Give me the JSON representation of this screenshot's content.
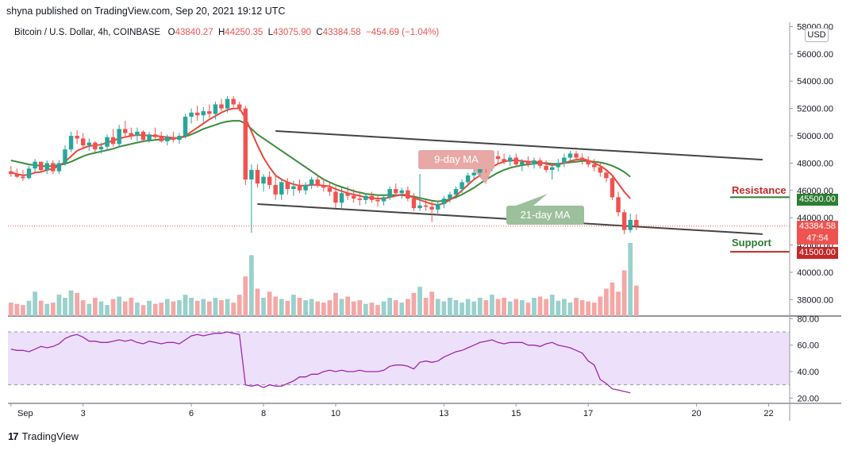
{
  "header": {
    "published": "shyna published on TradingView.com, Sep 20, 2021 19:12 UTC",
    "symbol": "Bitcoin / U.S. Dollar, 4h, COINBASE",
    "o_key": "O",
    "o_val": "43840.27",
    "h_key": "H",
    "h_val": "44250.35",
    "l_key": "L",
    "l_val": "43075.90",
    "c_key": "C",
    "c_val": "43384.58",
    "change": "−454.69 (−1.04%)"
  },
  "currency": "USD",
  "brand": "TradingView",
  "labels": {
    "ma9": "9-day MA",
    "ma21": "21-day MA",
    "resistance": "Resistance",
    "support": "Support",
    "resistance_price": "45500.00",
    "support_price": "41500.00",
    "last_price": "43384.58",
    "countdown": "47:54"
  },
  "colors": {
    "up": "#26a69a",
    "down": "#ef5350",
    "ma9": "#f0453a",
    "ma21": "#3c8c3c",
    "rsi": "#9c27b0",
    "rsi_band": "#ede0fb",
    "channel": "#444444",
    "resistance": "#c62828",
    "support": "#c62828"
  },
  "chart_data": {
    "type": "candlestick",
    "yaxis_ticks": [
      58000,
      56000,
      54000,
      52000,
      50000,
      48000,
      46000,
      44000,
      42000,
      40000,
      38000
    ],
    "ylim": [
      36800,
      58200
    ],
    "xaxis_ticks": [
      {
        "label": "Sep",
        "x": 0.5
      },
      {
        "label": "3",
        "x": 12.5
      },
      {
        "label": "6",
        "x": 30.5
      },
      {
        "label": "8",
        "x": 42.5
      },
      {
        "label": "10",
        "x": 54.5
      },
      {
        "label": "13",
        "x": 72.5
      },
      {
        "label": "15",
        "x": 84.5
      },
      {
        "label": "17",
        "x": 96.5
      },
      {
        "label": "20",
        "x": 114.5
      },
      {
        "label": "22",
        "x": 126.5
      }
    ],
    "candles": [
      [
        47400,
        47800,
        47000,
        47200
      ],
      [
        47200,
        47600,
        46900,
        47000
      ],
      [
        47000,
        47500,
        46700,
        46900
      ],
      [
        46900,
        47800,
        46800,
        47600
      ],
      [
        47600,
        48300,
        47300,
        48100
      ],
      [
        48100,
        48000,
        47300,
        47500
      ],
      [
        47500,
        48200,
        47200,
        48000
      ],
      [
        48000,
        48200,
        47200,
        47400
      ],
      [
        47400,
        48200,
        47200,
        48000
      ],
      [
        48000,
        49300,
        47800,
        49000
      ],
      [
        49000,
        50300,
        48800,
        50000
      ],
      [
        50000,
        50400,
        49400,
        49800
      ],
      [
        49800,
        50200,
        49000,
        49300
      ],
      [
        49300,
        49800,
        48900,
        49500
      ],
      [
        49500,
        49600,
        48800,
        49000
      ],
      [
        49000,
        49500,
        48700,
        49200
      ],
      [
        49200,
        50100,
        48900,
        49900
      ],
      [
        49900,
        50500,
        49200,
        49400
      ],
      [
        49400,
        50800,
        49200,
        50500
      ],
      [
        50500,
        51100,
        49900,
        50200
      ],
      [
        50200,
        50600,
        49700,
        50000
      ],
      [
        50000,
        50600,
        49600,
        50300
      ],
      [
        50300,
        50400,
        49500,
        49700
      ],
      [
        49700,
        50300,
        49500,
        50100
      ],
      [
        50100,
        50600,
        49700,
        49900
      ],
      [
        49900,
        50300,
        49500,
        49600
      ],
      [
        49600,
        50100,
        49300,
        49900
      ],
      [
        49900,
        50300,
        49500,
        49700
      ],
      [
        49700,
        50200,
        49400,
        50000
      ],
      [
        50000,
        51600,
        49800,
        51400
      ],
      [
        51400,
        52000,
        50900,
        51700
      ],
      [
        51700,
        52200,
        51100,
        51500
      ],
      [
        51500,
        52100,
        51000,
        51800
      ],
      [
        51800,
        52300,
        51300,
        51600
      ],
      [
        51600,
        52500,
        51200,
        52300
      ],
      [
        52300,
        52700,
        51800,
        52000
      ],
      [
        52000,
        52900,
        51700,
        52700
      ],
      [
        52700,
        52900,
        52100,
        52300
      ],
      [
        52300,
        52500,
        51800,
        52000
      ],
      [
        52000,
        52200,
        46400,
        46800
      ],
      [
        46800,
        47900,
        42900,
        47500
      ],
      [
        47500,
        47900,
        46200,
        46500
      ],
      [
        46500,
        47200,
        45900,
        47000
      ],
      [
        47000,
        47400,
        46100,
        46400
      ],
      [
        46400,
        47100,
        45300,
        45700
      ],
      [
        45700,
        46900,
        45300,
        46600
      ],
      [
        46600,
        46900,
        45700,
        46100
      ],
      [
        46100,
        46700,
        45600,
        46300
      ],
      [
        46300,
        46800,
        45800,
        46000
      ],
      [
        46000,
        46600,
        45700,
        46400
      ],
      [
        46400,
        47000,
        46100,
        46800
      ],
      [
        46800,
        47100,
        46200,
        46400
      ],
      [
        46400,
        46900,
        45900,
        46200
      ],
      [
        46200,
        46600,
        45600,
        45900
      ],
      [
        45900,
        46300,
        44700,
        45100
      ],
      [
        45100,
        46200,
        44700,
        45800
      ],
      [
        45800,
        46300,
        45300,
        45600
      ],
      [
        45600,
        46100,
        45100,
        45400
      ],
      [
        45400,
        45900,
        44900,
        45300
      ],
      [
        45300,
        45800,
        45000,
        45600
      ],
      [
        45600,
        45900,
        45100,
        45300
      ],
      [
        45300,
        45700,
        44800,
        45200
      ],
      [
        45200,
        45700,
        44900,
        45500
      ],
      [
        45500,
        46300,
        45300,
        46100
      ],
      [
        46100,
        46500,
        45600,
        45800
      ],
      [
        45800,
        46200,
        45400,
        46000
      ],
      [
        46000,
        46300,
        45200,
        45400
      ],
      [
        45400,
        45800,
        44500,
        44700
      ],
      [
        44700,
        47200,
        44500,
        44900
      ],
      [
        44900,
        45300,
        44500,
        44800
      ],
      [
        44800,
        45200,
        43700,
        44600
      ],
      [
        44600,
        45200,
        44300,
        45000
      ],
      [
        45000,
        45600,
        44700,
        45400
      ],
      [
        45400,
        45900,
        45100,
        45700
      ],
      [
        45700,
        46300,
        45400,
        46100
      ],
      [
        46100,
        46800,
        45800,
        46600
      ],
      [
        46600,
        47300,
        46300,
        47100
      ],
      [
        47100,
        47500,
        46800,
        47300
      ],
      [
        47300,
        47900,
        47000,
        47700
      ],
      [
        47700,
        48100,
        47300,
        47600
      ],
      [
        47600,
        48700,
        47400,
        48500
      ],
      [
        48500,
        48900,
        48000,
        48300
      ],
      [
        48300,
        48700,
        47900,
        48100
      ],
      [
        48100,
        48600,
        47800,
        48400
      ],
      [
        48400,
        48700,
        47700,
        47900
      ],
      [
        47900,
        48300,
        47400,
        48100
      ],
      [
        48100,
        48500,
        47700,
        47900
      ],
      [
        47900,
        48400,
        47600,
        48200
      ],
      [
        48200,
        48400,
        47600,
        47800
      ],
      [
        47800,
        48200,
        47300,
        47500
      ],
      [
        47500,
        48000,
        46800,
        47700
      ],
      [
        47700,
        48300,
        47400,
        48000
      ],
      [
        48000,
        48700,
        47700,
        48400
      ],
      [
        48400,
        48900,
        48100,
        48700
      ],
      [
        48700,
        48900,
        48200,
        48400
      ],
      [
        48400,
        48700,
        47900,
        48200
      ],
      [
        48200,
        48500,
        47700,
        47900
      ],
      [
        47900,
        48300,
        47400,
        47700
      ],
      [
        47700,
        48000,
        47000,
        47300
      ],
      [
        47300,
        47500,
        46600,
        46900
      ],
      [
        46900,
        47000,
        45300,
        45500
      ],
      [
        45500,
        45900,
        44100,
        44400
      ],
      [
        44400,
        44600,
        42800,
        43100
      ],
      [
        43100,
        44300,
        42900,
        43840
      ],
      [
        43840,
        44250,
        43075,
        43384
      ]
    ],
    "ma9": [
      47300,
      47200,
      47100,
      47150,
      47300,
      47350,
      47500,
      47600,
      47800,
      48100,
      48500,
      48900,
      49100,
      49250,
      49300,
      49350,
      49500,
      49650,
      49800,
      49900,
      50000,
      50050,
      50050,
      50000,
      50000,
      49950,
      49900,
      49850,
      49850,
      50000,
      50300,
      50600,
      50900,
      51200,
      51450,
      51700,
      51900,
      52000,
      52000,
      51300,
      50300,
      49300,
      48400,
      47700,
      47100,
      46800,
      46600,
      46450,
      46350,
      46350,
      46400,
      46400,
      46350,
      46300,
      46100,
      45950,
      45800,
      45700,
      45600,
      45500,
      45450,
      45400,
      45400,
      45500,
      45600,
      45700,
      45650,
      45450,
      45300,
      45150,
      45000,
      44950,
      45050,
      45300,
      45600,
      46000,
      46400,
      46800,
      47100,
      47400,
      47700,
      47950,
      48100,
      48200,
      48200,
      48150,
      48100,
      48100,
      48050,
      47950,
      47850,
      47900,
      48000,
      48150,
      48250,
      48300,
      48200,
      48000,
      47800,
      47500,
      47100,
      46500,
      45900,
      45400
    ],
    "ma21": [
      48200,
      48100,
      48000,
      47900,
      47850,
      47800,
      47750,
      47800,
      47850,
      47950,
      48100,
      48300,
      48500,
      48650,
      48750,
      48850,
      48950,
      49050,
      49200,
      49300,
      49400,
      49500,
      49600,
      49650,
      49700,
      49750,
      49750,
      49800,
      49850,
      49950,
      50100,
      50300,
      50500,
      50650,
      50800,
      50950,
      51050,
      51100,
      51100,
      50900,
      50500,
      50100,
      49800,
      49500,
      49200,
      48900,
      48600,
      48300,
      48000,
      47700,
      47400,
      47100,
      46800,
      46600,
      46400,
      46250,
      46100,
      45950,
      45850,
      45750,
      45700,
      45650,
      45650,
      45650,
      45650,
      45650,
      45600,
      45550,
      45450,
      45350,
      45250,
      45200,
      45250,
      45350,
      45500,
      45700,
      45950,
      46200,
      46500,
      46800,
      47050,
      47300,
      47500,
      47650,
      47750,
      47850,
      47900,
      47950,
      48000,
      48000,
      47950,
      47950,
      48000,
      48050,
      48100,
      48150,
      48150,
      48100,
      48050,
      47950,
      47800,
      47600,
      47350,
      47000
    ],
    "volume": [
      22,
      20,
      18,
      25,
      40,
      25,
      20,
      22,
      35,
      30,
      42,
      38,
      26,
      20,
      30,
      24,
      18,
      28,
      32,
      24,
      30,
      22,
      18,
      25,
      20,
      22,
      28,
      24,
      26,
      35,
      30,
      25,
      28,
      24,
      30,
      26,
      28,
      22,
      35,
      65,
      100,
      45,
      30,
      40,
      32,
      28,
      25,
      35,
      30,
      26,
      28,
      24,
      22,
      26,
      38,
      28,
      32,
      24,
      26,
      20,
      22,
      18,
      24,
      30,
      26,
      22,
      28,
      38,
      48,
      30,
      40,
      28,
      24,
      30,
      26,
      22,
      28,
      24,
      30,
      26,
      35,
      28,
      30,
      24,
      28,
      26,
      22,
      30,
      32,
      28,
      35,
      25,
      28,
      22,
      30,
      26,
      24,
      22,
      32,
      45,
      55,
      40,
      75,
      120,
      50
    ],
    "rsi_ticks": [
      80,
      60,
      40,
      20
    ],
    "rsi_ylim": [
      16,
      82
    ],
    "rsi_band": [
      30,
      70
    ],
    "rsi": [
      57,
      56,
      56,
      55,
      57,
      59,
      58,
      59,
      61,
      65,
      67,
      68,
      66,
      63,
      63,
      62,
      62,
      63,
      64,
      63,
      64,
      62,
      61,
      63,
      62,
      61,
      62,
      62,
      61,
      64,
      67,
      68,
      67,
      68,
      69,
      69,
      70,
      69,
      68,
      30,
      29,
      30,
      28,
      30,
      29,
      29,
      31,
      33,
      36,
      36,
      38,
      38,
      40,
      41,
      40,
      41,
      40,
      40,
      41,
      40,
      40,
      40,
      41,
      44,
      45,
      45,
      44,
      42,
      47,
      48,
      47,
      48,
      51,
      53,
      55,
      56,
      58,
      60,
      62,
      63,
      64,
      62,
      61,
      62,
      62,
      62,
      60,
      60,
      59,
      61,
      62,
      60,
      59,
      58,
      56,
      54,
      48,
      45,
      34,
      31,
      27,
      26,
      25,
      24
    ],
    "channel_upper": [
      [
        44,
        50350
      ],
      [
        125,
        48250
      ]
    ],
    "channel_lower": [
      [
        41,
        45000
      ],
      [
        125,
        42800
      ]
    ],
    "resistance_level": 45500,
    "support_level": 41500,
    "last_price_level": 43384.58
  }
}
